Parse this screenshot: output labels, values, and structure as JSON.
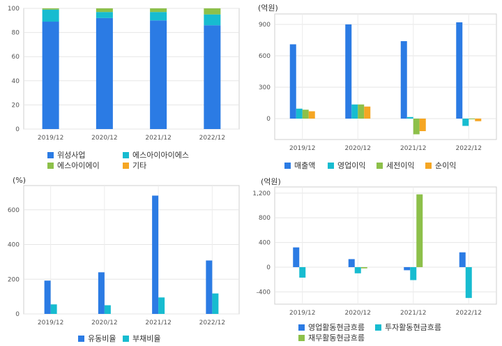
{
  "chart_data": [
    {
      "type": "bar",
      "stacked": true,
      "unit_label": "",
      "categories": [
        "2019/12",
        "2020/12",
        "2021/12",
        "2022/12"
      ],
      "ylim": [
        0,
        100
      ],
      "yticks": [
        0,
        20,
        40,
        60,
        80,
        100
      ],
      "grid": true,
      "legend_position": "bottom",
      "series": [
        {
          "name": "위성사업",
          "color": "#2b7be4",
          "values": [
            89,
            92,
            90,
            86
          ]
        },
        {
          "name": "에스아이아이에스",
          "color": "#17bcd0",
          "values": [
            10,
            5,
            7,
            9
          ]
        },
        {
          "name": "에스아이에이",
          "color": "#8dc04a",
          "values": [
            1,
            3,
            3,
            5
          ]
        },
        {
          "name": "기타",
          "color": "#f5a623",
          "values": [
            0,
            0,
            0,
            0
          ]
        }
      ]
    },
    {
      "type": "bar",
      "unit_label": "(억원)",
      "categories": [
        "2019/12",
        "2020/12",
        "2021/12",
        "2022/12"
      ],
      "ylim": [
        -200,
        1000
      ],
      "yticks": [
        0,
        300,
        600,
        900
      ],
      "grid": true,
      "legend_position": "bottom",
      "series": [
        {
          "name": "매출액",
          "color": "#2b7be4",
          "values": [
            710,
            900,
            740,
            920
          ]
        },
        {
          "name": "영업이익",
          "color": "#17bcd0",
          "values": [
            95,
            135,
            15,
            -70
          ]
        },
        {
          "name": "세전이익",
          "color": "#8dc04a",
          "values": [
            85,
            135,
            -150,
            -5
          ]
        },
        {
          "name": "순이익",
          "color": "#f5a623",
          "values": [
            70,
            115,
            -120,
            -25
          ]
        }
      ]
    },
    {
      "type": "bar",
      "unit_label": "(%)",
      "categories": [
        "2019/12",
        "2020/12",
        "2021/12",
        "2022/12"
      ],
      "ylim": [
        0,
        740
      ],
      "yticks": [
        0,
        200,
        400,
        600
      ],
      "grid": true,
      "legend_position": "bottom",
      "series": [
        {
          "name": "유동비율",
          "color": "#2b7be4",
          "values": [
            192,
            240,
            682,
            308
          ]
        },
        {
          "name": "부채비율",
          "color": "#17bcd0",
          "values": [
            55,
            50,
            95,
            118
          ]
        }
      ]
    },
    {
      "type": "bar",
      "unit_label": "(억원)",
      "categories": [
        "2019/12",
        "2020/12",
        "2021/12",
        "2022/12"
      ],
      "ylim": [
        -600,
        1300
      ],
      "yticks": [
        -400,
        0,
        400,
        800,
        1200
      ],
      "ytick_labels": [
        "-400",
        "0",
        "400",
        "800",
        "1,200"
      ],
      "grid": true,
      "legend_position": "bottom",
      "series": [
        {
          "name": "영업활동현금흐름",
          "color": "#2b7be4",
          "values": [
            320,
            130,
            -50,
            240
          ]
        },
        {
          "name": "투자활동현금흐름",
          "color": "#17bcd0",
          "values": [
            -170,
            -100,
            -210,
            -500
          ]
        },
        {
          "name": "재무활동현금흐름",
          "color": "#8dc04a",
          "values": [
            0,
            -20,
            1180,
            0
          ]
        }
      ]
    }
  ]
}
